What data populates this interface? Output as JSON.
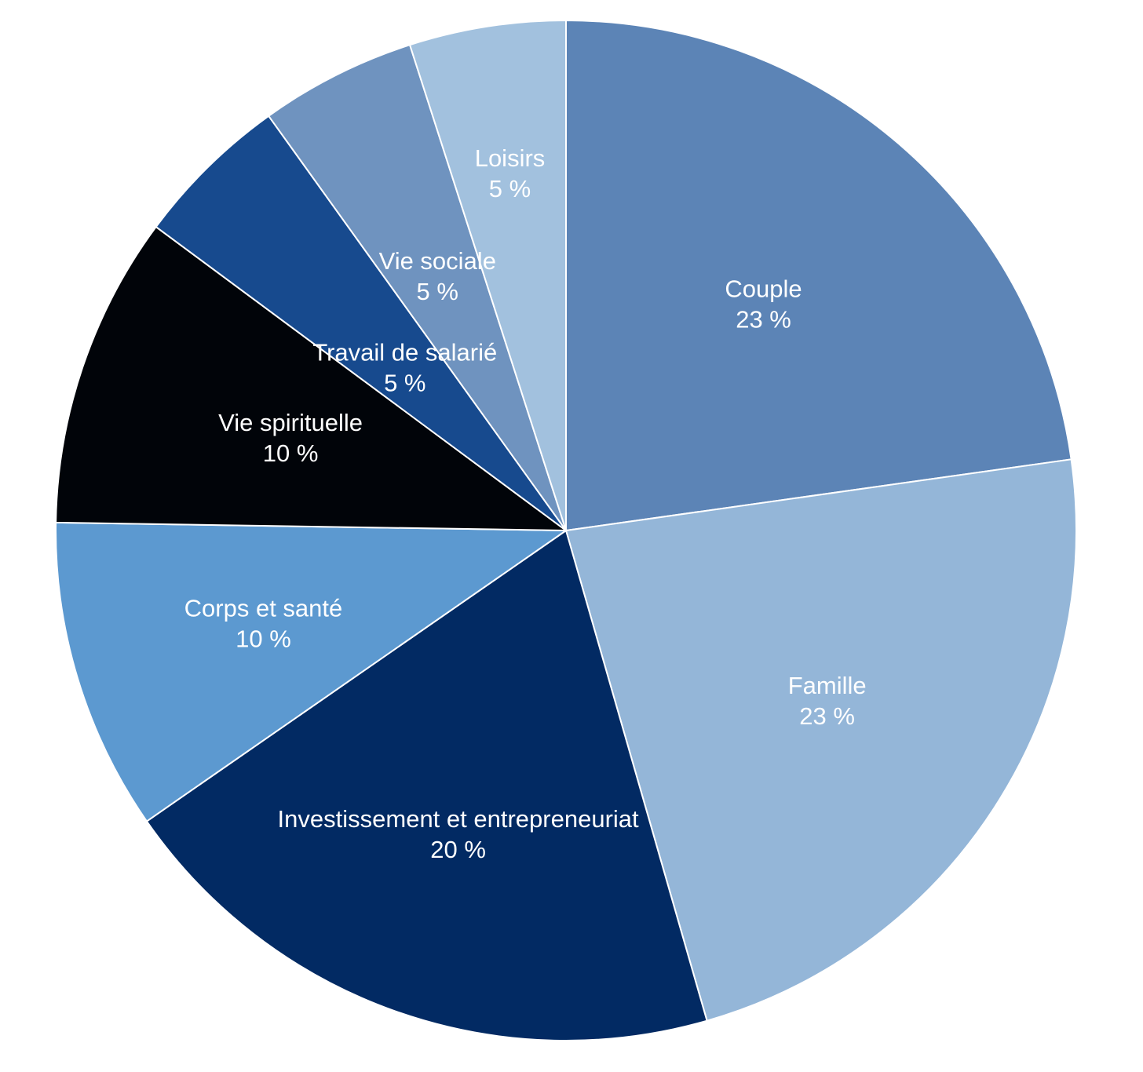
{
  "chart_data": {
    "type": "pie",
    "title": "",
    "start_angle_deg": 0,
    "direction": "clockwise",
    "slices": [
      {
        "label": "Couple",
        "value_label": "23 %",
        "value": 23,
        "color": "#5c84b6"
      },
      {
        "label": "Famille",
        "value_label": "23 %",
        "value": 23,
        "color": "#94b6d8"
      },
      {
        "label": "Investissement et entrepreneuriat",
        "value_label": "20 %",
        "value": 20,
        "color": "#022a63"
      },
      {
        "label": "Corps et santé",
        "value_label": "10 %",
        "value": 10,
        "color": "#5c99d0"
      },
      {
        "label": "Vie spirituelle",
        "value_label": "10 %",
        "value": 10,
        "color": "#010409"
      },
      {
        "label": "Travail de salarié",
        "value_label": "5 %",
        "value": 5,
        "color": "#174a8e"
      },
      {
        "label": "Vie sociale",
        "value_label": "5 %",
        "value": 5,
        "color": "#6f93bf"
      },
      {
        "label": "Loisirs",
        "value_label": "5 %",
        "value": 5,
        "color": "#a2c1de"
      }
    ]
  }
}
